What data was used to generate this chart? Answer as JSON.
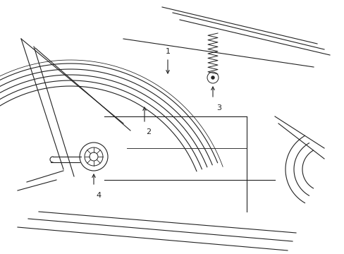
{
  "bg_color": "#ffffff",
  "line_color": "#222222",
  "figsize": [
    4.89,
    3.6
  ],
  "dpi": 100,
  "lw": 0.8
}
